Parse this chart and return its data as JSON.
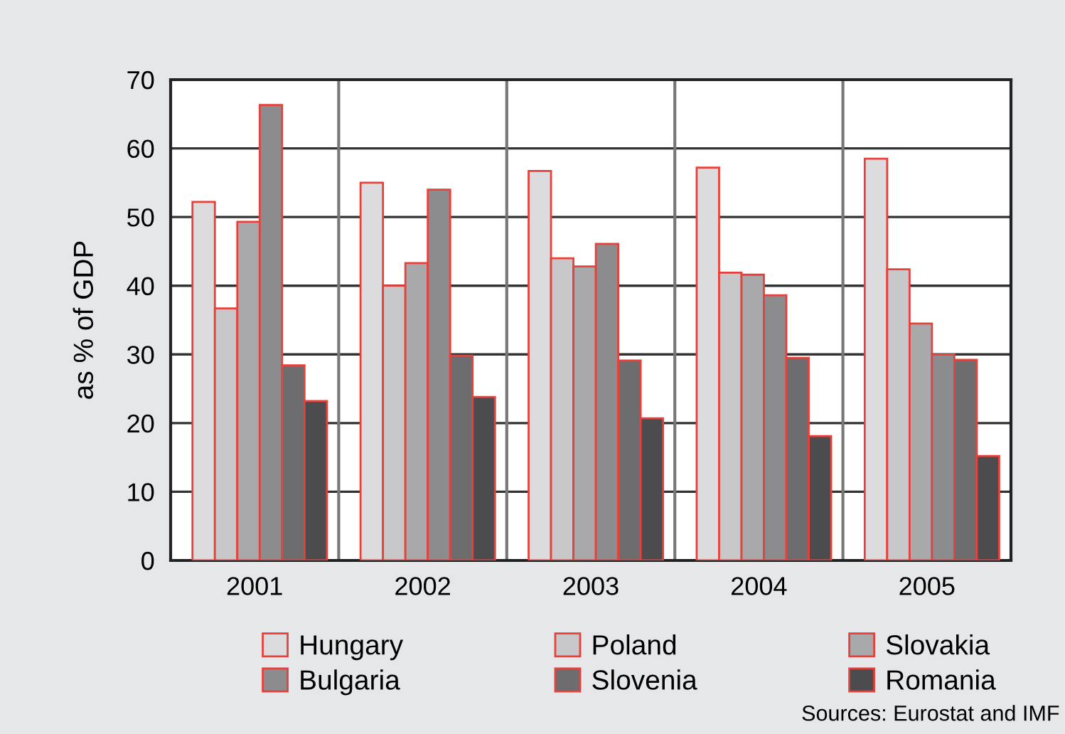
{
  "chart_data": {
    "type": "bar",
    "ylabel": "as % of GDP",
    "categories": [
      "2001",
      "2002",
      "2003",
      "2004",
      "2005"
    ],
    "series": [
      {
        "name": "Hungary",
        "color": "#dcdcde",
        "values": [
          52.2,
          55.0,
          56.7,
          57.2,
          58.5
        ]
      },
      {
        "name": "Poland",
        "color": "#c8c8ca",
        "values": [
          36.7,
          40.0,
          44.0,
          41.9,
          42.4
        ]
      },
      {
        "name": "Slovakia",
        "color": "#a9a9ac",
        "values": [
          49.3,
          43.3,
          42.8,
          41.6,
          34.5
        ]
      },
      {
        "name": "Bulgaria",
        "color": "#8c8c8e",
        "values": [
          66.3,
          54.0,
          46.1,
          38.6,
          30.0
        ]
      },
      {
        "name": "Slovenia",
        "color": "#6d6d6f",
        "values": [
          28.4,
          29.8,
          29.1,
          29.5,
          29.2
        ]
      },
      {
        "name": "Romania",
        "color": "#4c4b4d",
        "values": [
          23.2,
          23.8,
          20.7,
          18.1,
          15.2
        ]
      }
    ],
    "ylim": [
      0,
      70
    ],
    "yticks": [
      0,
      10,
      20,
      30,
      40,
      50,
      60,
      70
    ],
    "grid": true,
    "legend": "bottom",
    "annotations": [
      "Sources: Eurostat and IMF"
    ]
  }
}
